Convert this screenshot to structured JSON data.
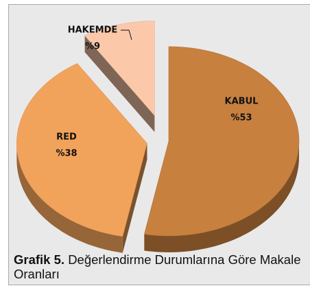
{
  "chart_data": {
    "type": "pie",
    "categories": [
      "KABUL",
      "RED",
      "HAKEMDE"
    ],
    "values": [
      53,
      38,
      9
    ],
    "value_labels": [
      "%53",
      "%38",
      "%9"
    ],
    "colors": [
      "#c8803f",
      "#f2a35b",
      "#fbc9aa"
    ]
  },
  "caption": {
    "label": "Grafik 5.",
    "text": "Değerlendirme Durumlarına Göre Makale Oranları"
  }
}
